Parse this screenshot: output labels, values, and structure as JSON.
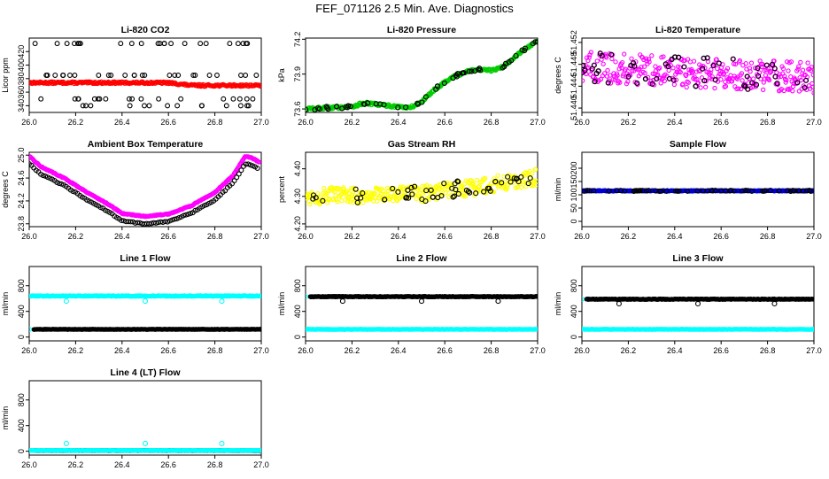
{
  "title": "FEF_071126  2.5 Min. Ave. Diagnostics",
  "chart_data": [
    {
      "type": "scatter",
      "id": "co2",
      "title": "Li-820 CO2",
      "ylabel": "Licor ppm",
      "xlim": [
        26.0,
        27.0
      ],
      "ylim": [
        330,
        440
      ],
      "xticks": [
        "26.0",
        "26.2",
        "26.4",
        "26.6",
        "26.8",
        "27.0"
      ],
      "yticks": [
        {
          "v": 340,
          "label": "340"
        },
        {
          "v": 360,
          "label": "360"
        },
        {
          "v": 380,
          "label": "380"
        },
        {
          "v": 400,
          "label": "400"
        },
        {
          "v": 420,
          "label": "420"
        }
      ],
      "series": [
        {
          "name": "primary",
          "color": "#ff0000",
          "style": "band",
          "base": 374,
          "noise": 1.5,
          "trend": [
            [
              26.0,
              374
            ],
            [
              26.6,
              374
            ],
            [
              26.7,
              370
            ],
            [
              27.0,
              370
            ]
          ]
        },
        {
          "name": "diagnostic",
          "color": "#000000",
          "style": "sparse",
          "levels": [
            432,
            385,
            350,
            340
          ]
        }
      ]
    },
    {
      "type": "scatter",
      "id": "pressure",
      "title": "Li-820 Pressure",
      "ylabel": "kPa",
      "xlim": [
        26.0,
        27.0
      ],
      "ylim": [
        73.57,
        74.21
      ],
      "xticks": [
        "26.0",
        "26.2",
        "26.4",
        "26.6",
        "26.8",
        "27.0"
      ],
      "yticks": [
        {
          "v": 73.6,
          "label": "73.6"
        },
        {
          "v": 73.9,
          "label": "73.9"
        },
        {
          "v": 74.2,
          "label": "74.2"
        }
      ],
      "series": [
        {
          "name": "primary",
          "color": "#00cc00",
          "style": "line",
          "noise": 0.012,
          "trend": [
            [
              26.0,
              73.6
            ],
            [
              26.2,
              73.62
            ],
            [
              26.25,
              73.65
            ],
            [
              26.35,
              73.63
            ],
            [
              26.45,
              73.61
            ],
            [
              26.5,
              73.66
            ],
            [
              26.55,
              73.76
            ],
            [
              26.62,
              73.86
            ],
            [
              26.7,
              73.93
            ],
            [
              26.75,
              73.94
            ],
            [
              26.8,
              73.93
            ],
            [
              26.85,
              73.96
            ],
            [
              26.92,
              74.08
            ],
            [
              27.0,
              74.18
            ]
          ]
        },
        {
          "name": "overlay",
          "color": "#000000",
          "style": "overlay"
        }
      ]
    },
    {
      "type": "scatter",
      "id": "licor_temp",
      "title": "Li-820 Temperature",
      "ylabel": "degrees C",
      "xlim": [
        26.0,
        27.0
      ],
      "ylim": [
        51.4392,
        51.4528
      ],
      "xticks": [
        "26.0",
        "26.2",
        "26.4",
        "26.6",
        "26.8",
        "27.0"
      ],
      "yticks": [
        {
          "v": 51.44,
          "label": "51.440"
        },
        {
          "v": 51.444,
          "label": "51.444"
        },
        {
          "v": 51.448,
          "label": "51.448"
        },
        {
          "v": 51.452,
          "label": "51.452"
        }
      ],
      "series": [
        {
          "name": "primary",
          "color": "#ff00ff",
          "style": "cloud",
          "noise": 0.0028,
          "trend": [
            [
              26.0,
              51.4475
            ],
            [
              27.0,
              51.4455
            ]
          ]
        },
        {
          "name": "overlay",
          "color": "#000000",
          "style": "overlay"
        }
      ]
    },
    {
      "type": "scatter",
      "id": "box_temp",
      "title": "Ambient Box Temperature",
      "ylabel": "degrees C",
      "xlim": [
        26.0,
        27.0
      ],
      "ylim": [
        23.75,
        25.05
      ],
      "xticks": [
        "26.0",
        "26.2",
        "26.4",
        "26.6",
        "26.8",
        "27.0"
      ],
      "yticks": [
        {
          "v": 23.8,
          "label": "23.8"
        },
        {
          "v": 24.2,
          "label": "24.2"
        },
        {
          "v": 24.6,
          "label": "24.6"
        },
        {
          "v": 25.0,
          "label": "25.0"
        }
      ],
      "series": [
        {
          "name": "primary",
          "color": "#ff00ff",
          "style": "line",
          "noise": 0.008,
          "trend": [
            [
              26.0,
              24.98
            ],
            [
              26.05,
              24.8
            ],
            [
              26.15,
              24.6
            ],
            [
              26.25,
              24.35
            ],
            [
              26.35,
              24.12
            ],
            [
              26.4,
              23.98
            ],
            [
              26.5,
              23.93
            ],
            [
              26.6,
              23.97
            ],
            [
              26.7,
              24.12
            ],
            [
              26.8,
              24.35
            ],
            [
              26.88,
              24.65
            ],
            [
              26.93,
              24.98
            ],
            [
              26.96,
              24.95
            ],
            [
              26.99,
              24.88
            ]
          ]
        },
        {
          "name": "offset",
          "color": "#000000",
          "style": "offset",
          "offset": -0.13
        }
      ]
    },
    {
      "type": "scatter",
      "id": "rh",
      "title": "Gas Stream RH",
      "ylabel": "percent",
      "xlim": [
        26.0,
        27.0
      ],
      "ylim": [
        4.19,
        4.46
      ],
      "xticks": [
        "26.0",
        "26.2",
        "26.4",
        "26.6",
        "26.8",
        "27.0"
      ],
      "yticks": [
        {
          "v": 4.2,
          "label": "4.20"
        },
        {
          "v": 4.3,
          "label": "4.30"
        },
        {
          "v": 4.4,
          "label": "4.40"
        }
      ],
      "series": [
        {
          "name": "primary",
          "color": "#ffff00",
          "style": "cloud",
          "noise": 0.03,
          "trend": [
            [
              26.0,
              4.3
            ],
            [
              26.5,
              4.31
            ],
            [
              26.7,
              4.33
            ],
            [
              27.0,
              4.37
            ]
          ]
        },
        {
          "name": "overlay",
          "color": "#000000",
          "style": "overlay"
        }
      ]
    },
    {
      "type": "scatter",
      "id": "sample_flow",
      "title": "Sample Flow",
      "ylabel": "ml/min",
      "xlim": [
        26.0,
        27.0
      ],
      "ylim": [
        -20,
        260
      ],
      "xticks": [
        "26.0",
        "26.2",
        "26.4",
        "26.6",
        "26.8",
        "27.0"
      ],
      "yticks": [
        {
          "v": 0,
          "label": "0"
        },
        {
          "v": 50,
          "label": "50"
        },
        {
          "v": 100,
          "label": "100"
        },
        {
          "v": 150,
          "label": "150"
        },
        {
          "v": 200,
          "label": "200"
        }
      ],
      "series": [
        {
          "name": "primary",
          "color": "#0000cc",
          "style": "band",
          "noise": 1.5,
          "trend": [
            [
              26.0,
              115
            ],
            [
              27.0,
              115
            ]
          ]
        },
        {
          "name": "overlay",
          "color": "#000000",
          "style": "overlay"
        }
      ]
    },
    {
      "type": "scatter",
      "id": "line1",
      "title": "Line 1 Flow",
      "ylabel": "ml/min",
      "xlim": [
        26.0,
        27.0
      ],
      "ylim": [
        -60,
        1100
      ],
      "xticks": [
        "26.0",
        "26.2",
        "26.4",
        "26.6",
        "26.8",
        "27.0"
      ],
      "yticks": [
        {
          "v": 0,
          "label": "0"
        },
        {
          "v": 400,
          "label": "400"
        },
        {
          "v": 800,
          "label": "800"
        }
      ],
      "series": [
        {
          "name": "active",
          "color": "#00ffff",
          "style": "band",
          "noise": 6,
          "trend": [
            [
              26.0,
              640
            ],
            [
              27.0,
              640
            ]
          ],
          "dips": [
            [
              26.16,
              560
            ],
            [
              26.5,
              560
            ],
            [
              26.83,
              560
            ]
          ]
        },
        {
          "name": "flow",
          "color": "#000000",
          "style": "band",
          "noise": 3,
          "trend": [
            [
              26.02,
              120
            ],
            [
              27.0,
              120
            ]
          ]
        },
        {
          "name": "edge",
          "color": "#00ffff",
          "style": "single",
          "pt": [
            26.0,
            120
          ]
        }
      ]
    },
    {
      "type": "scatter",
      "id": "line2",
      "title": "Line 2 Flow",
      "ylabel": "ml/min",
      "xlim": [
        26.0,
        27.0
      ],
      "ylim": [
        -60,
        1100
      ],
      "xticks": [
        "26.0",
        "26.2",
        "26.4",
        "26.6",
        "26.8",
        "27.0"
      ],
      "yticks": [
        {
          "v": 0,
          "label": "0"
        },
        {
          "v": 400,
          "label": "400"
        },
        {
          "v": 800,
          "label": "800"
        }
      ],
      "series": [
        {
          "name": "flow",
          "color": "#000000",
          "style": "band",
          "noise": 5,
          "trend": [
            [
              26.02,
              630
            ],
            [
              27.0,
              630
            ]
          ],
          "dips": [
            [
              26.16,
              560
            ],
            [
              26.5,
              560
            ],
            [
              26.83,
              560
            ]
          ]
        },
        {
          "name": "inactive",
          "color": "#00ffff",
          "style": "band",
          "noise": 3,
          "trend": [
            [
              26.0,
              120
            ],
            [
              27.0,
              120
            ]
          ]
        },
        {
          "name": "edge",
          "color": "#00ffff",
          "style": "single",
          "pt": [
            26.0,
            630
          ]
        }
      ]
    },
    {
      "type": "scatter",
      "id": "line3",
      "title": "Line 3 Flow",
      "ylabel": "ml/min",
      "xlim": [
        26.0,
        27.0
      ],
      "ylim": [
        -60,
        1100
      ],
      "xticks": [
        "26.0",
        "26.2",
        "26.4",
        "26.6",
        "26.8",
        "27.0"
      ],
      "yticks": [
        {
          "v": 0,
          "label": "0"
        },
        {
          "v": 400,
          "label": "400"
        },
        {
          "v": 800,
          "label": "800"
        }
      ],
      "series": [
        {
          "name": "flow",
          "color": "#000000",
          "style": "band",
          "noise": 5,
          "trend": [
            [
              26.02,
              590
            ],
            [
              27.0,
              590
            ]
          ],
          "dips": [
            [
              26.16,
              520
            ],
            [
              26.5,
              520
            ],
            [
              26.83,
              520
            ]
          ]
        },
        {
          "name": "inactive",
          "color": "#00ffff",
          "style": "band",
          "noise": 3,
          "trend": [
            [
              26.0,
              120
            ],
            [
              27.0,
              120
            ]
          ]
        },
        {
          "name": "edge",
          "color": "#00ffff",
          "style": "single",
          "pt": [
            26.0,
            590
          ]
        }
      ]
    },
    {
      "type": "scatter",
      "id": "line4",
      "title": "Line 4 (LT) Flow",
      "ylabel": "ml/min",
      "xlim": [
        26.0,
        27.0
      ],
      "ylim": [
        -60,
        1100
      ],
      "xticks": [
        "26.0",
        "26.2",
        "26.4",
        "26.6",
        "26.8",
        "27.0"
      ],
      "yticks": [
        {
          "v": 0,
          "label": "0"
        },
        {
          "v": 400,
          "label": "400"
        },
        {
          "v": 800,
          "label": "800"
        }
      ],
      "series": [
        {
          "name": "flow",
          "color": "#000000",
          "style": "band",
          "noise": 2,
          "trend": [
            [
              26.02,
              10
            ],
            [
              27.0,
              10
            ]
          ]
        },
        {
          "name": "cyan",
          "color": "#00ffff",
          "style": "band",
          "noise": 2,
          "trend": [
            [
              26.0,
              12
            ],
            [
              27.0,
              12
            ]
          ],
          "dips": [
            [
              26.16,
              120
            ],
            [
              26.5,
              120
            ],
            [
              26.83,
              120
            ]
          ]
        }
      ]
    }
  ]
}
